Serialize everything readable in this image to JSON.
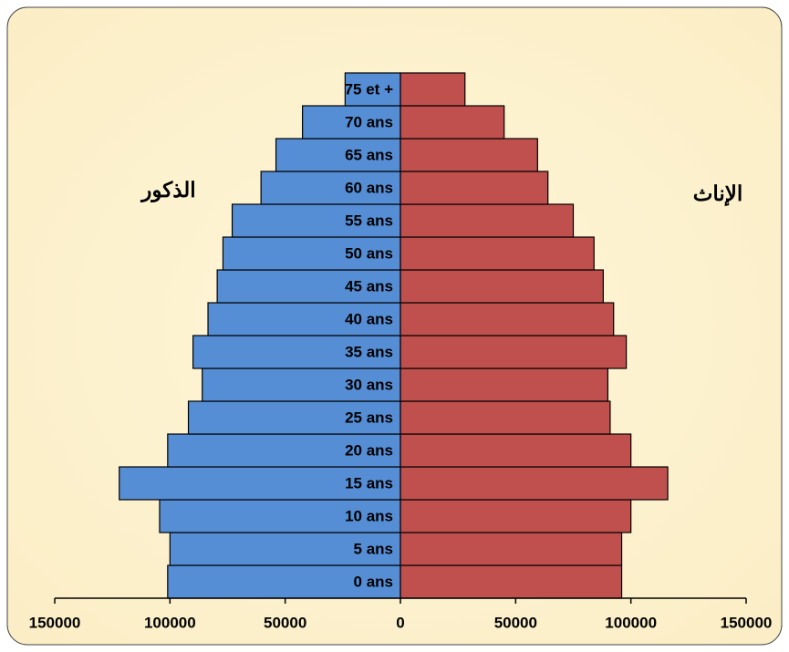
{
  "chart_data": {
    "type": "pyramid",
    "categories": [
      "0 ans",
      "5 ans",
      "10 ans",
      "15 ans",
      "20 ans",
      "25 ans",
      "30 ans",
      "35 ans",
      "40 ans",
      "45 ans",
      "50 ans",
      "55 ans",
      "60 ans",
      "65 ans",
      "70 ans",
      "75 et +"
    ],
    "series": [
      {
        "name": "الذكور",
        "color": "#558ed5",
        "values": [
          -101000,
          -100000,
          -104500,
          -122000,
          -101000,
          -92000,
          -86000,
          -90000,
          -83500,
          -79500,
          -77000,
          -73000,
          -60500,
          -54000,
          -42500,
          -24000
        ]
      },
      {
        "name": "الإناث",
        "color": "#c0504d",
        "values": [
          96000,
          96000,
          100000,
          116000,
          100000,
          91000,
          90000,
          98000,
          92500,
          88000,
          84000,
          75000,
          64000,
          59500,
          45000,
          28000
        ]
      }
    ],
    "xlim": [
      -150000,
      150000
    ],
    "xticks": [
      {
        "value": -150000,
        "label": "150000"
      },
      {
        "value": -100000,
        "label": "100000"
      },
      {
        "value": -50000,
        "label": "50000"
      },
      0,
      50000,
      100000,
      150000
    ]
  }
}
